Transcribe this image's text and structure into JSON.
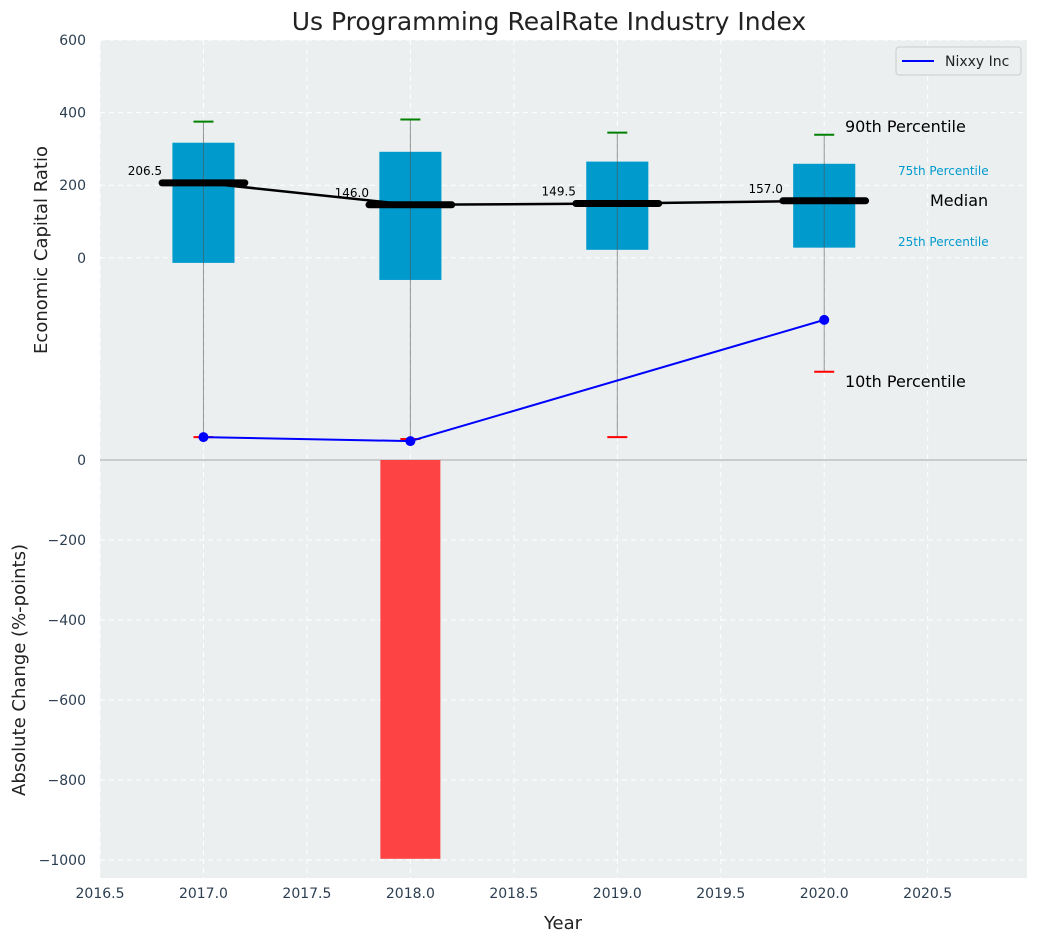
{
  "chart_data": [
    {
      "type": "box",
      "title": "Us Programming RealRate Industry Index",
      "ylabel": "Economic Capital Ratio",
      "xlabel": "Year",
      "xlim": [
        2016.5,
        2020.98
      ],
      "ylim": [
        -557,
        600
      ],
      "yticks": [
        0,
        200,
        400,
        600
      ],
      "xticks": [
        2016.5,
        2017.0,
        2017.5,
        2018.0,
        2018.5,
        2019.0,
        2019.5,
        2020.0,
        2020.5
      ],
      "xtick_labels": [
        "2016.5",
        "2017.0",
        "2017.5",
        "2018.0",
        "2018.5",
        "2019.0",
        "2019.5",
        "2020.0",
        "2020.5"
      ],
      "grid": true,
      "categories": [
        2017,
        2018,
        2019,
        2020
      ],
      "p10": [
        -494,
        -499,
        -494,
        -314
      ],
      "p25": [
        -14,
        -61,
        22,
        28
      ],
      "median": [
        206.5,
        146.0,
        149.5,
        157.0
      ],
      "median_labels": [
        "206.5",
        "146.0",
        "149.5",
        "157.0"
      ],
      "p75": [
        317,
        292,
        265,
        259
      ],
      "p90": [
        375,
        381,
        345,
        339
      ],
      "series": [
        {
          "name": "Nixxy Inc",
          "x": [
            2017,
            2018,
            2020
          ],
          "values": [
            -494,
            -505,
            -171
          ],
          "color": "#0000ff"
        }
      ],
      "legend": {
        "placement": "top-right",
        "entries": [
          "Nixxy Inc"
        ]
      },
      "annotations": {
        "p90": "90th Percentile",
        "p75": "75th Percentile",
        "median": "Median",
        "p25": "25th Percentile",
        "p10": "10th Percentile"
      },
      "colors": {
        "box": "#009ACD",
        "p90": "#008000",
        "p10": "#ff0000",
        "median": "#000000",
        "bg": "#EBEFF0"
      }
    },
    {
      "type": "bar",
      "ylabel": "Absolute Change (%-points)",
      "ylim": [
        -1045,
        0
      ],
      "yticks": [
        0,
        -200,
        -400,
        -600,
        -800,
        -1000
      ],
      "ytick_labels": [
        "0",
        "−200",
        "−400",
        "−600",
        "−800",
        "−1000"
      ],
      "categories": [
        2018
      ],
      "values": [
        -997
      ],
      "color": "#ff3030"
    }
  ]
}
